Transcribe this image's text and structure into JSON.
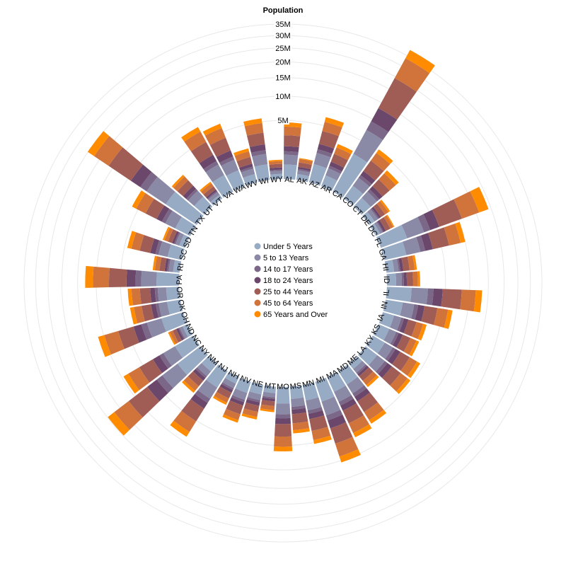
{
  "chart_data": {
    "type": "bar",
    "subtype": "radial-stacked-bar",
    "title": "",
    "ylabel": "Population",
    "y_scale": "sqrt",
    "ylim": [
      0,
      35000000
    ],
    "grid": true,
    "legend_position": "center",
    "y_ticks": [
      {
        "value": 5000000,
        "label": "5M"
      },
      {
        "value": 10000000,
        "label": "10M"
      },
      {
        "value": 15000000,
        "label": "15M"
      },
      {
        "value": 20000000,
        "label": "20M"
      },
      {
        "value": 25000000,
        "label": "25M"
      },
      {
        "value": 30000000,
        "label": "30M"
      },
      {
        "value": 35000000,
        "label": "35M"
      }
    ],
    "categories": [
      "AL",
      "AK",
      "AZ",
      "AR",
      "CA",
      "CO",
      "CT",
      "DE",
      "DC",
      "FL",
      "GA",
      "HI",
      "ID",
      "IL",
      "IN",
      "IA",
      "KS",
      "KY",
      "LA",
      "ME",
      "MD",
      "MA",
      "MI",
      "MN",
      "MS",
      "MO",
      "MT",
      "NE",
      "NV",
      "NH",
      "NJ",
      "NM",
      "NY",
      "NC",
      "ND",
      "OH",
      "OK",
      "OR",
      "PA",
      "RI",
      "SC",
      "SD",
      "TN",
      "TX",
      "UT",
      "VT",
      "VA",
      "WA",
      "WV",
      "WI",
      "WY"
    ],
    "colors": [
      "#98abc5",
      "#8a89a6",
      "#7b6888",
      "#6b486b",
      "#a05d56",
      "#d0743c",
      "#ff8c00"
    ],
    "series": [
      {
        "name": "Under 5 Years",
        "values": [
          310504,
          52083,
          515910,
          202070,
          2704659,
          358280,
          211637,
          59319,
          36352,
          1140516,
          740521,
          87207,
          121746,
          894368,
          443089,
          201321,
          202105,
          284659,
          310716,
          71459,
          371787,
          383568,
          625526,
          358471,
          220813,
          399450,
          61114,
          132092,
          199175,
          75297,
          557421,
          148323,
          1208495,
          652823,
          41896,
          743750,
          266547,
          243483,
          737462,
          60934,
          303024,
          58566,
          416334,
          2027307,
          268916,
          32635,
          522672,
          433119,
          105435,
          362277,
          38253
        ]
      },
      {
        "name": "5 to 13 Years",
        "values": [
          552339,
          85640,
          828669,
          343207,
          4499890,
          587154,
          403658,
          99496,
          50439,
          1938695,
          1250460,
          134025,
          201192,
          1558919,
          780199,
          345409,
          344427,
          505045,
          542341,
          133656,
          651923,
          701752,
          1179503,
          606802,
          371502,
          690476,
          106088,
          215265,
          325650,
          145176,
          1011656,
          241326,
          2141490,
          1097890,
          67358,
          1340492,
          438926,
          424167,
          1345341,
          111408,
          517154,
          94438,
          725948,
          3277946,
          413034,
          62538,
          880207,
          750274,
          189649,
          640286,
          60890
        ]
      },
      {
        "name": "14 to 17 Years",
        "values": [
          259034,
          42153,
          362642,
          165599,
          2159981,
          261701,
          196918,
          47414,
          25225,
          925060,
          557860,
          64011,
          89702,
          725973,
          361393,
          165883,
          165568,
          229927,
          254916,
          69806,
          324084,
          341713,
          585169,
          281949,
          179527,
          331543,
          53156,
          106403,
          142393,
          73602,
          501651,
          112801,
          1058031,
          491627,
          33794,
          691351,
          210445,
          193661,
          675232,
          54519,
          233567,
          47097,
          326185,
          1420518,
          168003,
          29957,
          367658,
          308009,
          85204,
          314856,
          29543
        ]
      },
      {
        "name": "18 to 24 Years",
        "values": [
          450818,
          74257,
          601943,
          306904,
          3853788,
          466194,
          325110,
          84464,
          75569,
          1607297,
          1035893,
          140219,
          162225,
          1365464,
          684766,
          329048,
          315079,
          472223,
          492193,
          113311,
          520767,
          570165,
          1090703,
          506642,
          329545,
          583985,
          94875,
          195008,
          240706,
          141065,
          801417,
          213150,
          2119400,
          952236,
          79997,
          1124324,
          381521,
          366106,
          1264323,
          103816,
          456604,
          85997,
          600844,
          2454721,
          331600,
          59160,
          808659,
          674386,
          164707,
          567703,
          67005
        ]
      },
      {
        "name": "25 to 44 Years",
        "values": [
          1215966,
          198185,
          1804762,
          768632,
          11161917,
          1493002,
          867909,
          232209,
          201474,
          5216401,
          2820497,
          360432,
          424617,
          3646731,
          1739186,
          751823,
          745958,
          1183121,
          1242312,
          331591,
          1540209,
          1790202,
          2673831,
          1427252,
          863150,
          1572618,
          231729,
          442626,
          788434,
          373125,
          2258233,
          524939,
          5355235,
          2511922,
          160123,
          2783002,
          958436,
          1018910,
          3132869,
          264232,
          1177296,
          198735,
          1586140,
          7199154,
          686658,
          146014,
          2098587,
          1800486,
          456016,
          1434539,
          136993
        ]
      },
      {
        "name": "45 to 64 Years",
        "values": [
          1224965,
          199175,
          1582602,
          761136,
          9302546,
          1437291,
          999022,
          253662,
          169112,
          5050883,
          2500813,
          389063,
          398604,
          3338802,
          1811853,
          783111,
          707717,
          1165609,
          1235519,
          401013,
          1493883,
          1740845,
          2830479,
          1386702,
          805958,
          1629522,
          253735,
          452058,
          659186,
          360209,
          2412001,
          549799,
          5257595,
          2562113,
          172357,
          3172744,
          979102,
          1068312,
          3637009,
          300201,
          1179733,
          221135,
          1682244,
          5861003,
          593346,
          186122,
          2162601,
          1778709,
          499108,
          1493115,
          136448
        ]
      },
      {
        "name": "65 Years and Over",
        "values": [
          650148,
          57213,
          919999,
          458189,
          4303846,
          713287,
          533842,
          131004,
          70648,
          3186713,
          1102763,
          188938,
          205400,
          1706708,
          866127,
          462520,
          362201,
          580312,
          565545,
          216503,
          721802,
          877258,
          1457898,
          668934,
          422680,
          837335,
          143200,
          248129,
          325343,
          187167,
          1222924,
          278256,
          2684345,
          1275943,
          96100,
          1611223,
          553355,
          540685,
          2042300,
          164315,
          651101,
          124520,
          870512,
          2877802,
          277120,
          102230,
          1079145,
          864247,
          290925,
          806123,
          75132
        ]
      }
    ]
  }
}
